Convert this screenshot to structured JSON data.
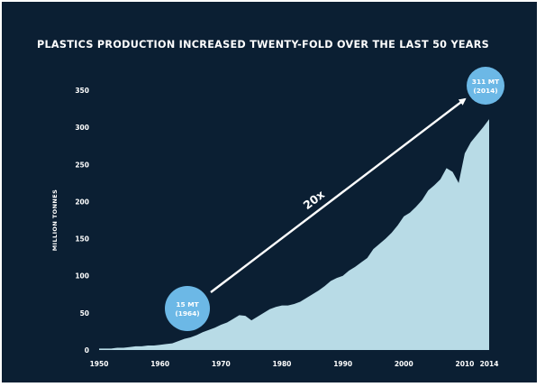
{
  "chart_data": {
    "type": "area",
    "title": "PLASTICS PRODUCTION INCREASED TWENTY-FOLD OVER THE LAST 50 YEARS",
    "ylabel": "MILLION TONNES",
    "xlabel": "",
    "xlim": [
      1950,
      2014
    ],
    "ylim": [
      0,
      350
    ],
    "x_ticks": [
      "1950",
      "1960",
      "1970",
      "1980",
      "1990",
      "2000",
      "2010",
      "2014"
    ],
    "y_ticks": [
      "0",
      "50",
      "100",
      "150",
      "200",
      "250",
      "300",
      "350"
    ],
    "grid": false,
    "colors": {
      "background": "#0b1f33",
      "area": "#b8dbe6",
      "bubble": "#6cb8e6",
      "text": "#ffffff"
    },
    "series": [
      {
        "x": [
          1950,
          1951,
          1952,
          1953,
          1954,
          1955,
          1956,
          1957,
          1958,
          1959,
          1960,
          1961,
          1962,
          1963,
          1964,
          1965,
          1966,
          1967,
          1968,
          1969,
          1970,
          1971,
          1972,
          1973,
          1974,
          1975,
          1976,
          1977,
          1978,
          1979,
          1980,
          1981,
          1982,
          1983,
          1984,
          1985,
          1986,
          1987,
          1988,
          1989,
          1990,
          1991,
          1992,
          1993,
          1994,
          1995,
          1996,
          1997,
          1998,
          1999,
          2000,
          2001,
          2002,
          2003,
          2004,
          2005,
          2006,
          2007,
          2008,
          2009,
          2010,
          2011,
          2012,
          2013,
          2014
        ],
        "values": [
          2,
          2,
          2,
          3,
          3,
          4,
          5,
          5,
          6,
          6,
          7,
          8,
          9,
          12,
          15,
          17,
          20,
          24,
          27,
          30,
          34,
          37,
          42,
          47,
          46,
          40,
          45,
          50,
          55,
          58,
          60,
          60,
          62,
          65,
          70,
          75,
          80,
          86,
          93,
          97,
          100,
          107,
          112,
          118,
          124,
          136,
          143,
          150,
          158,
          168,
          180,
          185,
          193,
          202,
          215,
          222,
          230,
          245,
          240,
          225,
          265,
          280,
          290,
          300,
          311
        ]
      }
    ],
    "annotations": [
      {
        "label_line1": "15 MT",
        "label_line2": "(1964)",
        "x": 1964,
        "y": 15
      },
      {
        "label_line1": "311 MT",
        "label_line2": "(2014)",
        "x": 2014,
        "y": 311
      }
    ],
    "arrow_label": "20x"
  }
}
